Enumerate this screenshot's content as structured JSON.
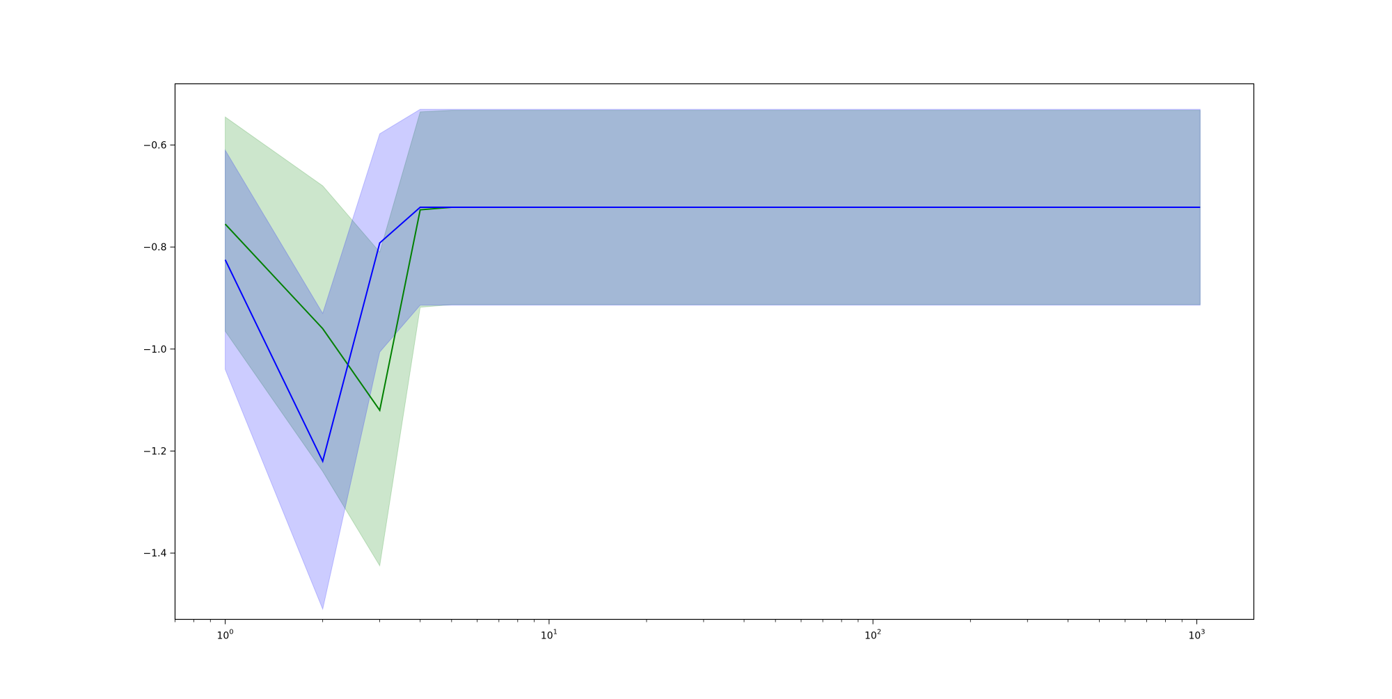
{
  "chart_data": {
    "type": "line",
    "title": "",
    "xlabel": "",
    "ylabel": "",
    "xscale": "log",
    "xlim": [
      0.7,
      1500
    ],
    "ylim": [
      -1.53,
      -0.48
    ],
    "grid": false,
    "legend": "none",
    "x_ticks": [
      {
        "value": 1,
        "base": "10",
        "exp": "0"
      },
      {
        "value": 10,
        "base": "10",
        "exp": "1"
      },
      {
        "value": 100,
        "base": "10",
        "exp": "2"
      },
      {
        "value": 1000,
        "base": "10",
        "exp": "3"
      }
    ],
    "y_ticks": [
      {
        "value": -0.6,
        "label": "−0.6"
      },
      {
        "value": -0.8,
        "label": "−0.8"
      },
      {
        "value": -1.0,
        "label": "−1.0"
      },
      {
        "value": -1.2,
        "label": "−1.2"
      },
      {
        "value": -1.4,
        "label": "−1.4"
      }
    ],
    "x": [
      1,
      2,
      3,
      4,
      5,
      1024
    ],
    "series": [
      {
        "color": "#008000",
        "band_color": "#008000",
        "band_opacity": 0.2,
        "values": [
          -0.755,
          -0.96,
          -1.12,
          -0.727,
          -0.722,
          -0.722
        ],
        "upper": [
          -0.545,
          -0.68,
          -0.81,
          -0.535,
          -0.532,
          -0.532
        ],
        "lower": [
          -0.965,
          -1.24,
          -1.425,
          -0.918,
          -0.913,
          -0.913
        ]
      },
      {
        "color": "#0000ff",
        "band_color": "#0000ff",
        "band_opacity": 0.2,
        "values": [
          -0.825,
          -1.22,
          -0.792,
          -0.722,
          -0.722,
          -0.722
        ],
        "upper": [
          -0.61,
          -0.93,
          -0.578,
          -0.53,
          -0.53,
          -0.53
        ],
        "lower": [
          -1.04,
          -1.51,
          -1.006,
          -0.914,
          -0.914,
          -0.914
        ]
      }
    ]
  }
}
